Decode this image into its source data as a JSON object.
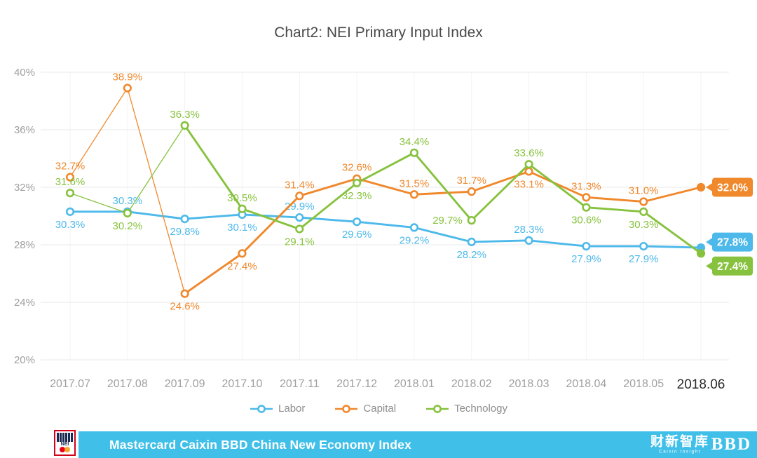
{
  "title": "Chart2: NEI Primary Input Index",
  "chart_data": {
    "type": "line",
    "title": "Chart2: NEI Primary Input Index",
    "x": [
      "2017.07",
      "2017.08",
      "2017.09",
      "2017.10",
      "2017.11",
      "2017.12",
      "2018.01",
      "2018.02",
      "2018.03",
      "2018.04",
      "2018.05",
      "2018.06"
    ],
    "ylim": [
      20,
      40
    ],
    "yticks": [
      20,
      24,
      28,
      32,
      36,
      40
    ],
    "unit": "%",
    "grid": true,
    "legend_position": "bottom",
    "series": [
      {
        "name": "Labor",
        "color": "#4db9ea",
        "values": [
          30.3,
          30.3,
          29.8,
          30.1,
          29.9,
          29.6,
          29.2,
          28.2,
          28.3,
          27.9,
          27.9,
          27.8
        ],
        "label_pos": [
          "b",
          "a",
          "b",
          "b",
          "a",
          "b",
          "b",
          "b",
          "a",
          "b",
          "b",
          "end"
        ],
        "end_badge": "27.8%",
        "badge_dy": -8,
        "thin_until": 0
      },
      {
        "name": "Capital",
        "color": "#f0882c",
        "values": [
          32.7,
          38.9,
          24.6,
          27.4,
          31.4,
          32.6,
          31.5,
          31.7,
          33.1,
          31.3,
          31.0,
          32.0
        ],
        "label_pos": [
          "a",
          "a",
          "b",
          "b",
          "a",
          "a",
          "a",
          "a",
          "b",
          "a",
          "a",
          "end"
        ],
        "end_badge": "32.0%",
        "badge_dy": 0,
        "thin_until": 2
      },
      {
        "name": "Technology",
        "color": "#87c23e",
        "values": [
          31.6,
          30.2,
          36.3,
          30.5,
          29.1,
          32.3,
          34.4,
          29.7,
          33.6,
          30.6,
          30.3,
          27.4
        ],
        "label_pos": [
          "a",
          "b",
          "a",
          "a",
          "b",
          "b",
          "a",
          "l",
          "a",
          "b",
          "b",
          "end"
        ],
        "end_badge": "27.4%",
        "badge_dy": 18,
        "thin_until": 2
      }
    ]
  },
  "axis": {
    "last_x_label": "2018.06",
    "label_color": "#a0a0a0",
    "last_label_color": "#2b2b2b"
  },
  "footer": {
    "bar_color": "#40bfe9",
    "title": "Mastercard Caixin BBD China New Economy Index",
    "nei_text": "NEI",
    "caixin_text": "财新智库",
    "caixin_subtext": "Caixin Insight",
    "bbd_text": "BBD"
  }
}
